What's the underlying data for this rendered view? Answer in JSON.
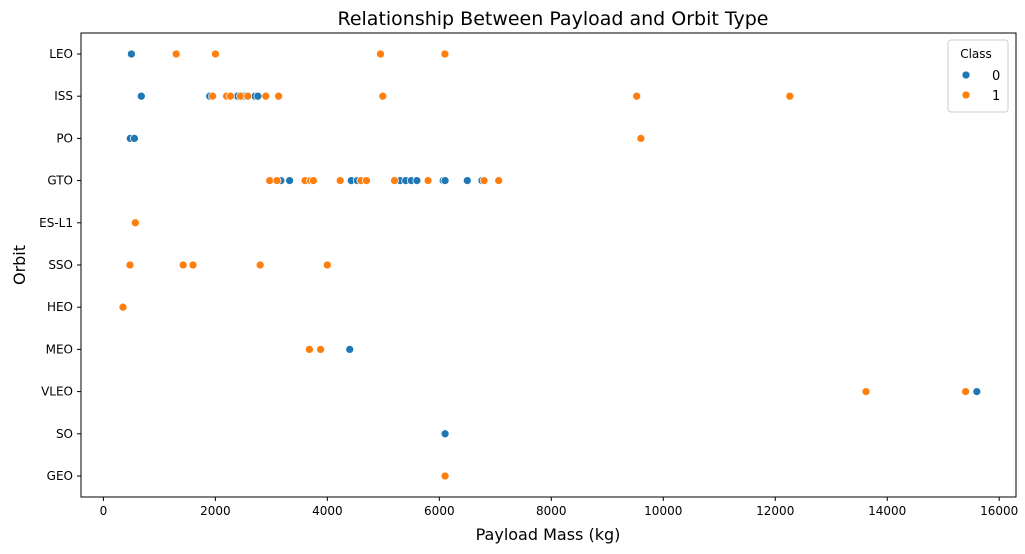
{
  "chart_data": {
    "type": "scatter",
    "title": "Relationship Between Payload and Orbit Type",
    "xlabel": "Payload Mass (kg)",
    "ylabel": "Orbit",
    "xlim": [
      -400,
      16300
    ],
    "xticks": [
      0,
      2000,
      4000,
      6000,
      8000,
      10000,
      12000,
      14000,
      16000
    ],
    "categories": [
      "LEO",
      "ISS",
      "PO",
      "GTO",
      "ES-L1",
      "SSO",
      "HEO",
      "MEO",
      "VLEO",
      "SO",
      "GEO"
    ],
    "legend": {
      "title": "Class",
      "position": "top-right",
      "entries": [
        {
          "label": "0",
          "color": "#1f77b4"
        },
        {
          "label": "1",
          "color": "#ff7f0e"
        }
      ]
    },
    "series": [
      {
        "name": "0",
        "color": "#1f77b4",
        "points": [
          {
            "x": 500,
            "y": "LEO"
          },
          {
            "x": 677,
            "y": "ISS"
          },
          {
            "x": 1898,
            "y": "ISS"
          },
          {
            "x": 2395,
            "y": "ISS"
          },
          {
            "x": 2500,
            "y": "ISS"
          },
          {
            "x": 2708,
            "y": "ISS"
          },
          {
            "x": 2760,
            "y": "ISS"
          },
          {
            "x": 480,
            "y": "PO"
          },
          {
            "x": 553,
            "y": "PO"
          },
          {
            "x": 3170,
            "y": "GTO"
          },
          {
            "x": 3325,
            "y": "GTO"
          },
          {
            "x": 4428,
            "y": "GTO"
          },
          {
            "x": 4535,
            "y": "GTO"
          },
          {
            "x": 5300,
            "y": "GTO"
          },
          {
            "x": 5400,
            "y": "GTO"
          },
          {
            "x": 5500,
            "y": "GTO"
          },
          {
            "x": 5600,
            "y": "GTO"
          },
          {
            "x": 6070,
            "y": "GTO"
          },
          {
            "x": 6104,
            "y": "GTO"
          },
          {
            "x": 6500,
            "y": "GTO"
          },
          {
            "x": 6761,
            "y": "GTO"
          },
          {
            "x": 4400,
            "y": "MEO"
          },
          {
            "x": 15600,
            "y": "VLEO"
          },
          {
            "x": 6104,
            "y": "SO"
          }
        ]
      },
      {
        "name": "1",
        "color": "#ff7f0e",
        "points": [
          {
            "x": 1300,
            "y": "LEO"
          },
          {
            "x": 2000,
            "y": "LEO"
          },
          {
            "x": 4950,
            "y": "LEO"
          },
          {
            "x": 6100,
            "y": "LEO"
          },
          {
            "x": 1950,
            "y": "ISS"
          },
          {
            "x": 2200,
            "y": "ISS"
          },
          {
            "x": 2270,
            "y": "ISS"
          },
          {
            "x": 2450,
            "y": "ISS"
          },
          {
            "x": 2580,
            "y": "ISS"
          },
          {
            "x": 2900,
            "y": "ISS"
          },
          {
            "x": 3130,
            "y": "ISS"
          },
          {
            "x": 4990,
            "y": "ISS"
          },
          {
            "x": 9525,
            "y": "ISS"
          },
          {
            "x": 12259,
            "y": "ISS"
          },
          {
            "x": 9600,
            "y": "PO"
          },
          {
            "x": 2970,
            "y": "GTO"
          },
          {
            "x": 3100,
            "y": "GTO"
          },
          {
            "x": 3600,
            "y": "GTO"
          },
          {
            "x": 3700,
            "y": "GTO"
          },
          {
            "x": 3750,
            "y": "GTO"
          },
          {
            "x": 4230,
            "y": "GTO"
          },
          {
            "x": 4600,
            "y": "GTO"
          },
          {
            "x": 4700,
            "y": "GTO"
          },
          {
            "x": 5200,
            "y": "GTO"
          },
          {
            "x": 5800,
            "y": "GTO"
          },
          {
            "x": 6800,
            "y": "GTO"
          },
          {
            "x": 7060,
            "y": "GTO"
          },
          {
            "x": 570,
            "y": "ES-L1"
          },
          {
            "x": 475,
            "y": "SSO"
          },
          {
            "x": 1425,
            "y": "SSO"
          },
          {
            "x": 1600,
            "y": "SSO"
          },
          {
            "x": 2800,
            "y": "SSO"
          },
          {
            "x": 4000,
            "y": "SSO"
          },
          {
            "x": 350,
            "y": "HEO"
          },
          {
            "x": 3680,
            "y": "MEO"
          },
          {
            "x": 3880,
            "y": "MEO"
          },
          {
            "x": 13620,
            "y": "VLEO"
          },
          {
            "x": 15400,
            "y": "VLEO"
          },
          {
            "x": 6104,
            "y": "GEO"
          }
        ]
      }
    ]
  }
}
